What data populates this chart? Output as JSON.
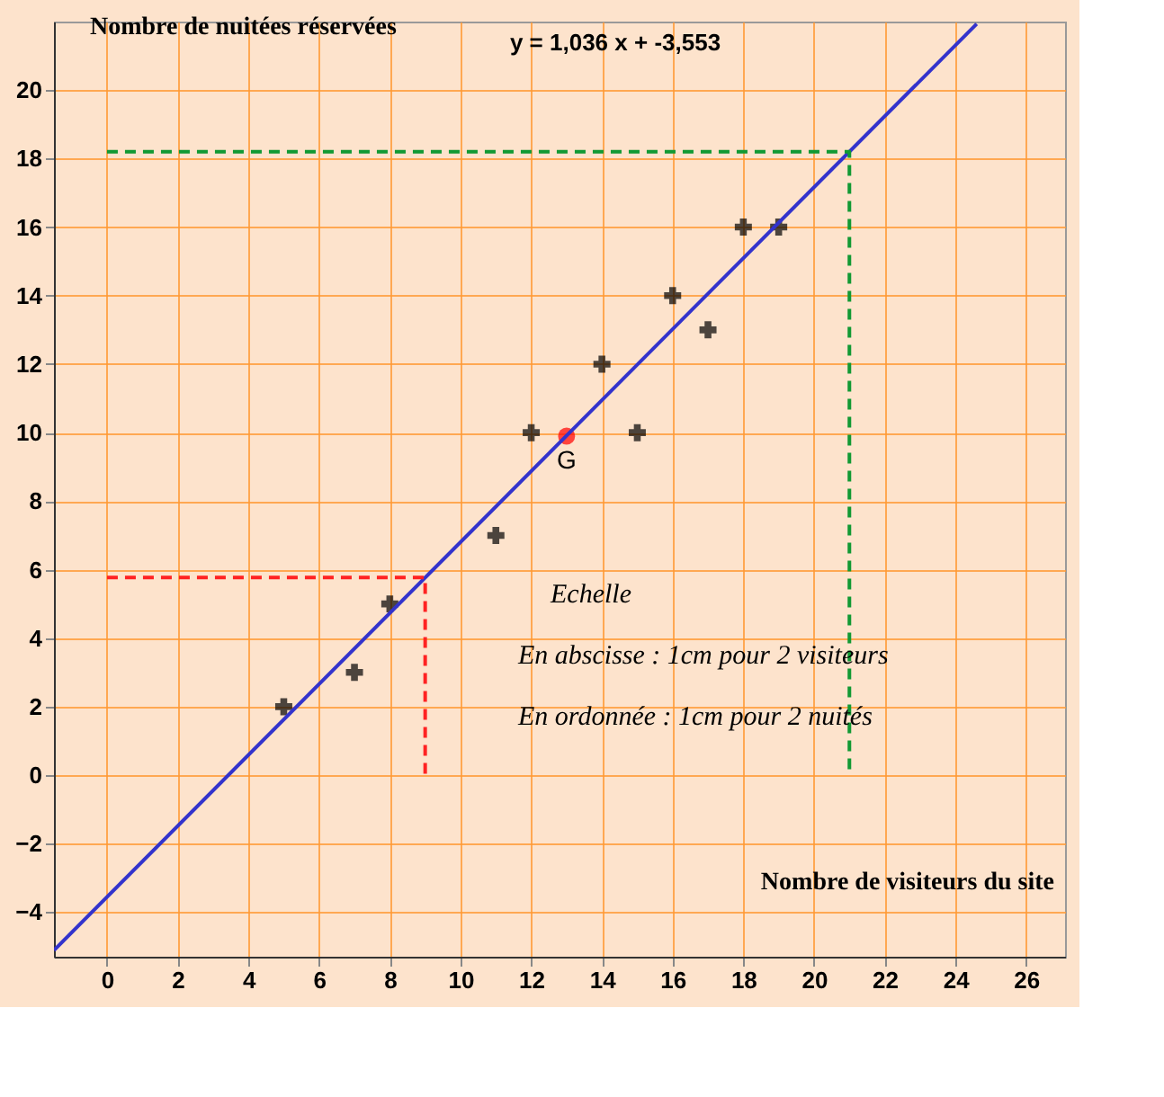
{
  "chart_data": {
    "type": "scatter",
    "xlabel": "Nombre de visiteurs du site",
    "ylabel": "Nombre de nuitées réservées",
    "xlim": [
      -1.5,
      27.1
    ],
    "ylim": [
      -5.3,
      22
    ],
    "xticks": [
      0,
      2,
      4,
      6,
      8,
      10,
      12,
      14,
      16,
      18,
      20,
      22,
      24,
      26
    ],
    "yticks": [
      -4,
      -2,
      0,
      2,
      4,
      6,
      8,
      10,
      12,
      14,
      16,
      18,
      20
    ],
    "grid": true,
    "series": [
      {
        "marker": "cross",
        "color": "#000000",
        "x": [
          5,
          7,
          8,
          11,
          12,
          14,
          15,
          16,
          17,
          18,
          19
        ],
        "values": [
          2,
          3,
          5,
          7,
          10,
          12,
          10,
          14,
          13,
          16,
          16
        ]
      },
      {
        "marker": "circle",
        "color": "#ff0000",
        "x": [
          13
        ],
        "values": [
          9.9
        ]
      },
      {
        "type": "line",
        "color": "#3333cc",
        "line_style": "solid",
        "x": [
          -1.5,
          24.6
        ],
        "values": [
          -5.11,
          21.93
        ]
      },
      {
        "type": "line",
        "color": "#ff2222",
        "line_style": "dashed",
        "x": [
          0,
          9,
          9
        ],
        "values": [
          5.77,
          5.77,
          0
        ]
      },
      {
        "type": "line",
        "color": "#119933",
        "line_style": "dashed",
        "x": [
          0,
          21,
          21
        ],
        "values": [
          18.2,
          18.2,
          0
        ]
      }
    ],
    "annotations": [
      {
        "text": "G",
        "x": 13,
        "y": 9.9
      },
      "y = 1,036 x + -3,553",
      "Echelle",
      "En abscisse : 1cm pour 2 visiteurs",
      "En ordonnée : 1cm pour 2 nuités"
    ]
  }
}
